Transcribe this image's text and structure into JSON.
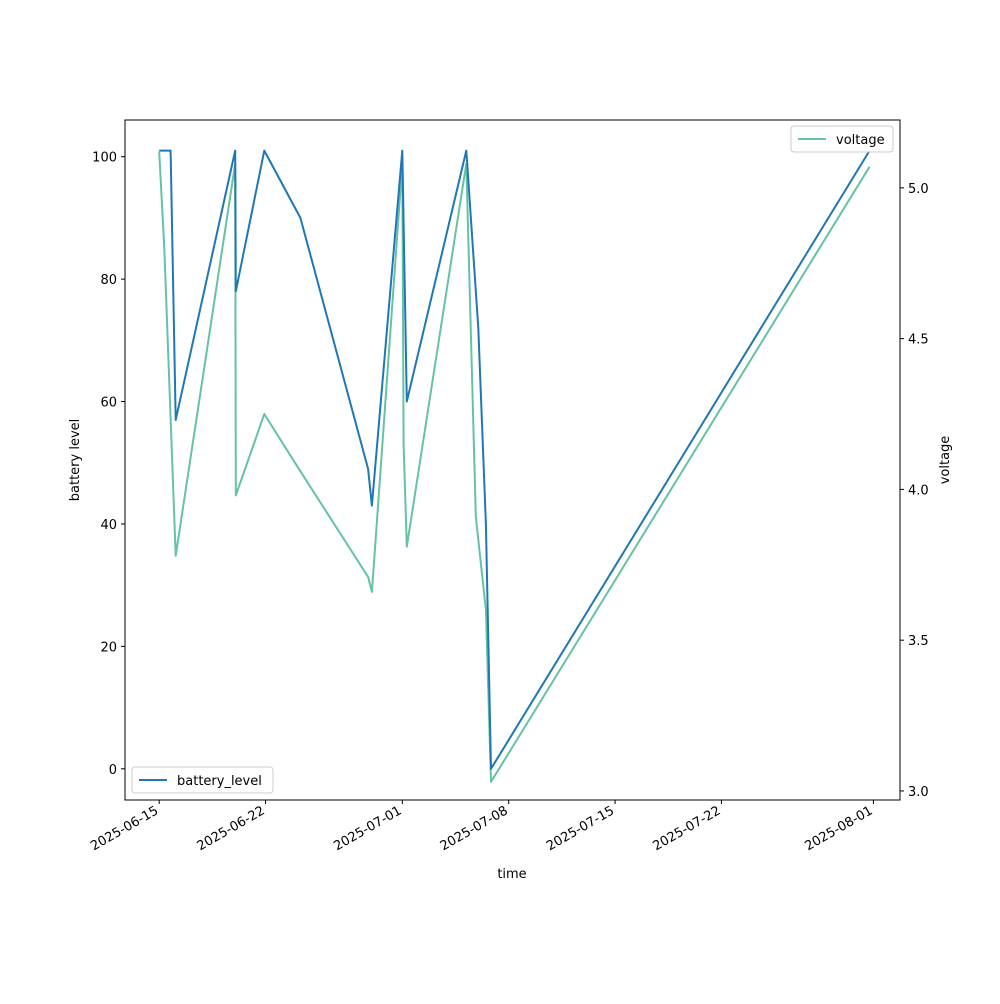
{
  "chart_data": {
    "type": "line",
    "xlabel": "time",
    "ylabel_left": "battery level",
    "ylabel_right": "voltage",
    "x_tick_labels": [
      "2025-06-15",
      "2025-06-22",
      "2025-07-01",
      "2025-07-08",
      "2025-07-15",
      "2025-07-22",
      "2025-08-01"
    ],
    "xlim": [
      "2025-06-12 18:00",
      "2025-08-02 18:00"
    ],
    "y_left_ticks": [
      0,
      20,
      40,
      60,
      80,
      100
    ],
    "ylim_left": [
      -5.1,
      106
    ],
    "y_right_ticks": [
      3.0,
      3.5,
      4.0,
      4.5,
      5.0
    ],
    "ylim_right": [
      2.97,
      5.225
    ],
    "legend_left": {
      "placement": "lower-left"
    },
    "legend_right": {
      "placement": "upper-right"
    },
    "grid": false,
    "series": [
      {
        "name": "battery_level",
        "axis": "left",
        "color": "#1f77b4",
        "points": [
          {
            "x": "2025-06-15 00:00",
            "y": 101
          },
          {
            "x": "2025-06-15 18:00",
            "y": 101
          },
          {
            "x": "2025-06-16 02:00",
            "y": 57
          },
          {
            "x": "2025-06-20 00:00",
            "y": 101
          },
          {
            "x": "2025-06-20 01:00",
            "y": 78
          },
          {
            "x": "2025-06-21 22:00",
            "y": 101
          },
          {
            "x": "2025-06-24 07:00",
            "y": 90
          },
          {
            "x": "2025-06-28 18:00",
            "y": 49
          },
          {
            "x": "2025-06-29 00:00",
            "y": 43
          },
          {
            "x": "2025-07-01 00:00",
            "y": 101
          },
          {
            "x": "2025-07-01 07:00",
            "y": 60
          },
          {
            "x": "2025-07-05 05:00",
            "y": 101
          },
          {
            "x": "2025-07-06 00:00",
            "y": 72
          },
          {
            "x": "2025-07-06 12:00",
            "y": 40
          },
          {
            "x": "2025-07-06 20:00",
            "y": 0
          },
          {
            "x": "2025-07-31 18:00",
            "y": 101
          }
        ]
      },
      {
        "name": "voltage",
        "axis": "right",
        "color": "#66c2a5",
        "points": [
          {
            "x": "2025-06-15 00:00",
            "y": 5.12
          },
          {
            "x": "2025-06-15 08:00",
            "y": 4.8
          },
          {
            "x": "2025-06-16 02:00",
            "y": 3.78
          },
          {
            "x": "2025-06-20 00:00",
            "y": 5.08
          },
          {
            "x": "2025-06-20 01:00",
            "y": 3.98
          },
          {
            "x": "2025-06-21 22:00",
            "y": 4.25
          },
          {
            "x": "2025-06-24 07:00",
            "y": 4.06
          },
          {
            "x": "2025-06-28 18:00",
            "y": 3.71
          },
          {
            "x": "2025-06-29 00:00",
            "y": 3.66
          },
          {
            "x": "2025-07-01 00:00",
            "y": 5.08
          },
          {
            "x": "2025-07-01 02:00",
            "y": 4.15
          },
          {
            "x": "2025-07-01 07:00",
            "y": 3.81
          },
          {
            "x": "2025-07-05 05:00",
            "y": 5.08
          },
          {
            "x": "2025-07-05 20:00",
            "y": 3.91
          },
          {
            "x": "2025-07-06 12:00",
            "y": 3.6
          },
          {
            "x": "2025-07-06 20:00",
            "y": 3.03
          },
          {
            "x": "2025-07-31 18:00",
            "y": 5.07
          }
        ]
      }
    ]
  }
}
